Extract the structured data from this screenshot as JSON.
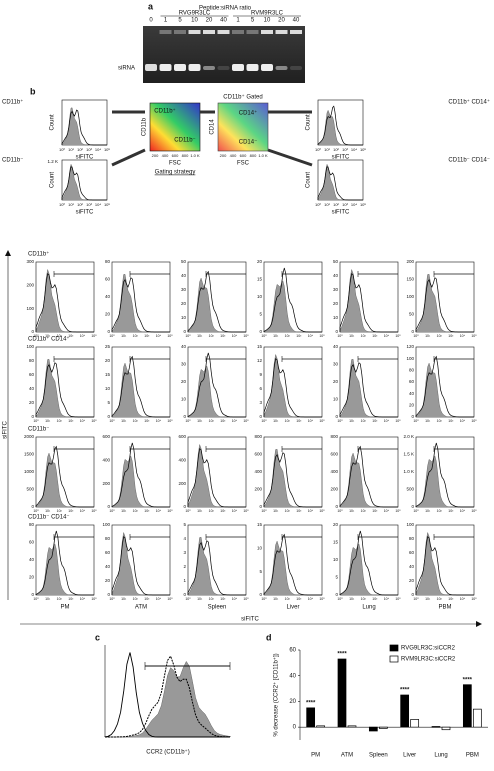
{
  "panel_a": {
    "letter": "a",
    "title": "Peptide:siRNA ratio",
    "control_lane": 0,
    "band_label": "siRNA",
    "groups": [
      {
        "name": "RVG9R3LC",
        "lanes": [
          1,
          5,
          10,
          20,
          40
        ]
      },
      {
        "name": "RVM9R3LC",
        "lanes": [
          1,
          5,
          10,
          20,
          40
        ]
      }
    ]
  },
  "panel_b": {
    "letter": "b",
    "populations": [
      "CD11b⁺",
      "CD11b⁺ CD14⁺",
      "CD11b⁻",
      "CD11b⁻ CD14⁻"
    ],
    "gated_title": "CD11b⁺ Gated",
    "gating_label": "Gating strategy",
    "dot_labels": {
      "cd11b_pos": "CD11b⁺",
      "cd11b_neg": "CD11b⁻",
      "cd14_pos": "CD14⁺",
      "cd14_neg": "CD14⁻",
      "x_axis": "FSC",
      "y_axis_left": "CD11b",
      "y_axis_right": "CD14"
    },
    "fsc_ticks": [
      "200",
      "400",
      "600",
      "800",
      "1.0 K"
    ],
    "count_label": "Count",
    "count_max_label": "1.2 K",
    "fitc_label": "siFITC",
    "log_ticks": [
      "10⁰",
      "10¹",
      "10²",
      "10³",
      "10⁴",
      "10⁵"
    ],
    "tissues": [
      "PM",
      "ATM",
      "Spleen",
      "Liver",
      "Lung",
      "PBM"
    ],
    "grid_yticks": [
      [
        [
          "0",
          "100",
          "200",
          "300"
        ],
        [
          "0",
          "20",
          "40",
          "60",
          "80"
        ],
        [
          "0",
          "10",
          "20",
          "30",
          "40",
          "50"
        ],
        [
          "0",
          "5",
          "10",
          "15",
          "20"
        ],
        [
          "0",
          "10",
          "20",
          "30",
          "40",
          "50"
        ],
        [
          "0",
          "50",
          "100",
          "150",
          "200"
        ]
      ],
      [
        [
          "0",
          "20",
          "40",
          "60",
          "80",
          "100"
        ],
        [
          "0",
          "5",
          "10",
          "15",
          "20",
          "25"
        ],
        [
          "0",
          "10",
          "20",
          "30",
          "40"
        ],
        [
          "0",
          "3",
          "6",
          "9",
          "12",
          "15"
        ],
        [
          "0",
          "10",
          "20",
          "30",
          "40"
        ],
        [
          "0",
          "20",
          "40",
          "60",
          "80",
          "100",
          "120"
        ]
      ],
      [
        [
          "0",
          "500",
          "1000",
          "1500",
          "2000"
        ],
        [
          "0",
          "200",
          "400",
          "600"
        ],
        [
          "0",
          "200",
          "400",
          "600"
        ],
        [
          "0",
          "200",
          "400",
          "600",
          "800"
        ],
        [
          "0",
          "200",
          "400",
          "600",
          "800"
        ],
        [
          "0",
          "500",
          "1.0 K",
          "1.5 K",
          "2.0 K"
        ]
      ],
      [
        [
          "0",
          "20",
          "40",
          "60",
          "80"
        ],
        [
          "0",
          "20",
          "40",
          "60",
          "80",
          "100"
        ],
        [
          "0",
          "1",
          "2",
          "3",
          "4",
          "5"
        ],
        [
          "0",
          "5",
          "10",
          "15"
        ],
        [
          "0",
          "5",
          "10",
          "15",
          "20"
        ],
        [
          "0",
          "20",
          "40",
          "60",
          "80",
          "100"
        ]
      ]
    ]
  },
  "panel_c": {
    "letter": "c",
    "x_label": "CCR2 (CD11b⁺)"
  },
  "chart_data": {
    "type": "bar",
    "letter": "d",
    "y_label": "% decrease (CCR2⁺ [CD11b⁺])",
    "categories": [
      "PM",
      "ATM",
      "Spleen",
      "Liver",
      "Lung",
      "PBM"
    ],
    "series": [
      {
        "name": "RVG9LR3C:siCCR2",
        "color": "#000000",
        "values": [
          15,
          53,
          -3,
          25,
          0.5,
          33
        ]
      },
      {
        "name": "RVM9LR3C:siCCR2",
        "color": "#ffffff",
        "values": [
          1,
          1,
          -1,
          6,
          -2,
          14
        ]
      }
    ],
    "significance": [
      "****",
      "****",
      null,
      "****",
      null,
      "****"
    ],
    "ylim": [
      -10,
      60
    ],
    "yticks": [
      0,
      20,
      40,
      60
    ],
    "legend": "top-right"
  }
}
